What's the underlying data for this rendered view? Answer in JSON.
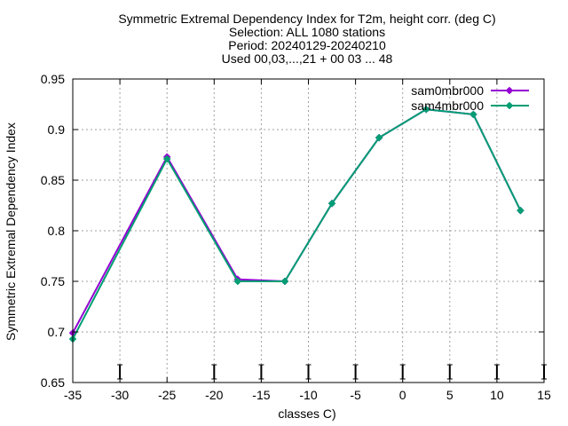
{
  "chart_data": {
    "type": "line",
    "title_lines": [
      "Symmetric Extremal Dependency Index  for T2m, height corr. (deg C)",
      "Selection: ALL   1080 stations",
      "Period: 20240129-20240210",
      "Used 00,03,...,21 + 00 03 ... 48"
    ],
    "xlabel": "classes C)",
    "ylabel": "Symmetric Extremal Dependency Index",
    "xlim": [
      -35,
      15
    ],
    "ylim": [
      0.65,
      0.95
    ],
    "xticks": [
      -35,
      -30,
      -25,
      -20,
      -15,
      -10,
      -5,
      0,
      5,
      10,
      15
    ],
    "xtick_labels": [
      "-35",
      "-30",
      "-25",
      "-20",
      "-15",
      "-10",
      "-5",
      "0",
      "5",
      "10",
      "15"
    ],
    "yticks": [
      0.65,
      0.7,
      0.75,
      0.8,
      0.85,
      0.9,
      0.95
    ],
    "ytick_labels": [
      "0.65",
      "0.7",
      "0.75",
      "0.8",
      "0.85",
      "0.9",
      "0.95"
    ],
    "grid": true,
    "legend_position": "top-right",
    "class_marker_x": [
      -30,
      -20,
      -15,
      -10,
      -5,
      0,
      5,
      10,
      15
    ],
    "series": [
      {
        "name": "sam0mbr000",
        "color": "#9400d3",
        "x": [
          -35,
          -25,
          -17.5,
          -12.5,
          -7.5,
          -2.5,
          2.5,
          7.5,
          12.5
        ],
        "y": [
          0.699,
          0.873,
          0.752,
          0.75,
          0.827,
          0.892,
          0.92,
          0.915,
          0.82
        ]
      },
      {
        "name": "sam4mbr000",
        "color": "#009e73",
        "x": [
          -35,
          -25,
          -17.5,
          -12.5,
          -7.5,
          -2.5,
          2.5,
          7.5,
          12.5
        ],
        "y": [
          0.693,
          0.871,
          0.75,
          0.75,
          0.827,
          0.892,
          0.92,
          0.915,
          0.82
        ]
      }
    ]
  }
}
